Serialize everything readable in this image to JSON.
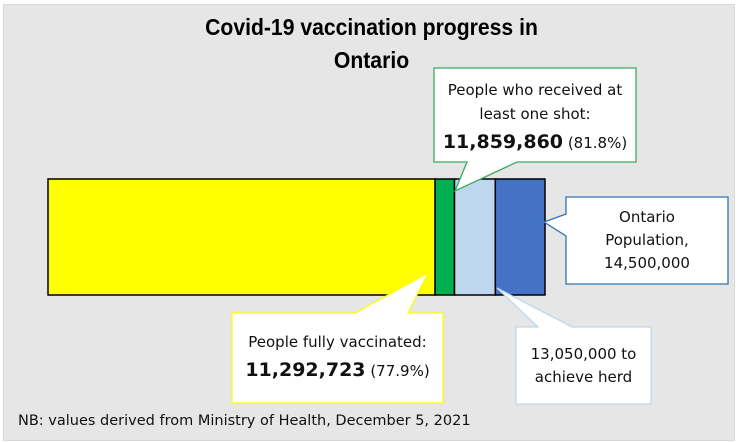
{
  "chart_data": {
    "type": "bar",
    "orientation": "horizontal-stacked-single",
    "title": "Covid-19 vaccination progress in Ontario",
    "title_lines": [
      "Covid-19 vaccination progress in",
      "Ontario"
    ],
    "xlim": [
      0,
      14500000
    ],
    "grid": false,
    "segments": [
      {
        "key": "fully",
        "end": 11292723,
        "color": "#ffff00"
      },
      {
        "key": "one_shot",
        "end": 11859860,
        "color": "#00b050"
      },
      {
        "key": "herd",
        "end": 13050000,
        "color": "#bdd7ee"
      },
      {
        "key": "population",
        "end": 14500000,
        "color": "#4472c4"
      }
    ],
    "annotations": {
      "one_shot": {
        "line1": "People who received at",
        "line2": "least one shot:",
        "value": "11,859,860",
        "pct": "(81.8%)",
        "border": "#3aaa60"
      },
      "population": {
        "line1": "Ontario",
        "line2": "Population,",
        "line3": "14,500,000",
        "border": "#2e75b6"
      },
      "herd": {
        "line1": "13,050,000 to",
        "line2": "achieve herd",
        "border": "#bdd7ee"
      },
      "fully": {
        "line1": "People fully vaccinated:",
        "value": "11,292,723",
        "pct": "(77.9%)",
        "border": "#ffff00"
      }
    },
    "note": "NB: values derived from Ministry of Health, December 5, 2021"
  }
}
